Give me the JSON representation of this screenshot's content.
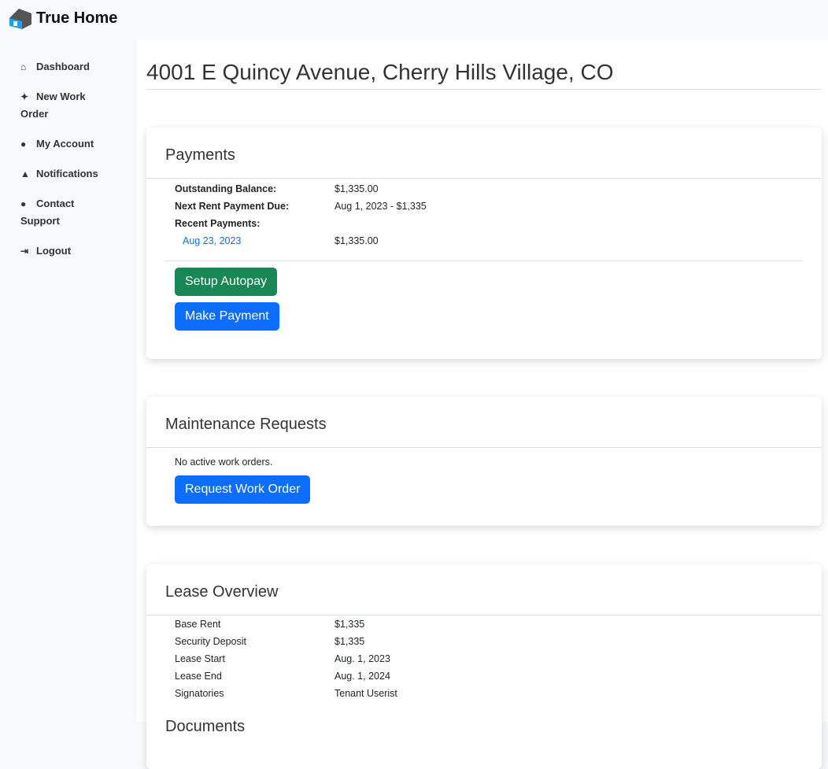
{
  "brand": {
    "name": "True Home",
    "colors": {
      "roof": "#555555",
      "house": "#1da1f2"
    }
  },
  "sidebar": {
    "items": [
      {
        "icon": "home-icon",
        "glyph": "⌂",
        "label": "Dashboard"
      },
      {
        "icon": "sparkles-icon",
        "glyph": "✦",
        "label": "New Work Order"
      },
      {
        "icon": "user-circle-icon",
        "glyph": "●",
        "label": "My Account"
      },
      {
        "icon": "bell-icon",
        "glyph": "▲",
        "label": "Notifications"
      },
      {
        "icon": "comment-icon",
        "glyph": "●",
        "label": "Contact Support"
      },
      {
        "icon": "logout-icon",
        "glyph": "⇥",
        "label": "Logout"
      }
    ]
  },
  "page": {
    "title": "4001 E Quincy Avenue, Cherry Hills Village, CO"
  },
  "payments": {
    "title": "Payments",
    "outstanding_label": "Outstanding Balance:",
    "outstanding_value": "$1,335.00",
    "next_label": "Next Rent Payment Due:",
    "next_value": "Aug 1, 2023 - $1,335",
    "recent_label": "Recent Payments:",
    "recent": [
      {
        "date": "Aug 23, 2023",
        "amount": "$1,335.00"
      }
    ],
    "autopay_label": "Setup Autopay",
    "pay_label": "Make Payment"
  },
  "maintenance": {
    "title": "Maintenance Requests",
    "empty": "No active work orders.",
    "request_label": "Request Work Order"
  },
  "lease": {
    "title": "Lease Overview",
    "rows": [
      {
        "k": "Base Rent",
        "v": "$1,335"
      },
      {
        "k": "Security Deposit",
        "v": "$1,335"
      },
      {
        "k": "Lease Start",
        "v": "Aug. 1, 2023"
      },
      {
        "k": "Lease End",
        "v": "Aug. 1, 2024"
      },
      {
        "k": "Signatories",
        "v": "Tenant Userist"
      }
    ],
    "next_heading": "Documents"
  },
  "colors": {
    "primary": "#0d6efd",
    "success": "#198754"
  }
}
